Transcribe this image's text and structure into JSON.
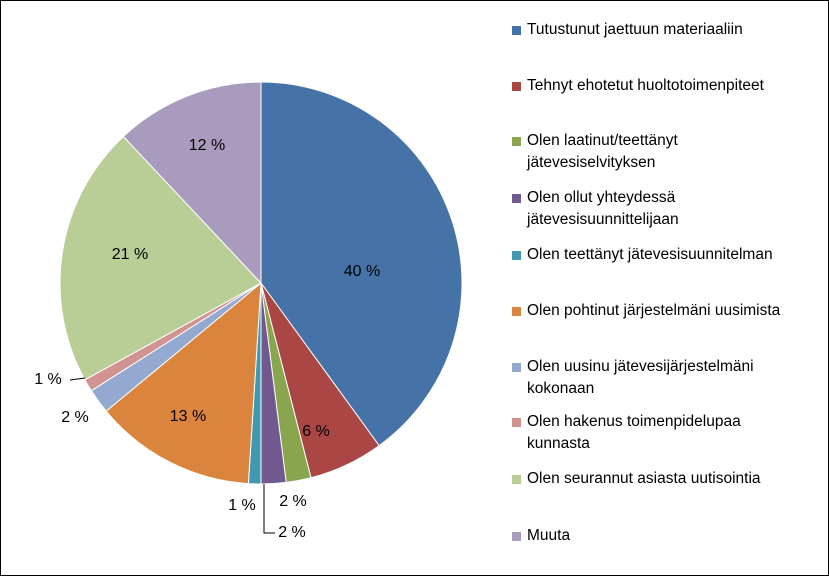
{
  "chart_data": {
    "type": "pie",
    "title": "",
    "legend_position": "right",
    "slices": [
      {
        "name": "Tutustunut jaettuun materiaaliin",
        "value": 40,
        "label": "40 %",
        "color": "#4572A7"
      },
      {
        "name": "Tehnyt ehotetut huoltotoimenpiteet",
        "value": 6,
        "label": "6 %",
        "color": "#AA4643"
      },
      {
        "name": "Olen laatinut/teettänyt\njätevesiselvityksen",
        "value": 2,
        "label": "2 %",
        "color": "#89A54E"
      },
      {
        "name": "Olen ollut yhteydessä\njätevesisuunnittelijaan",
        "value": 2,
        "label": "2 %",
        "color": "#71588F"
      },
      {
        "name": "Olen teettänyt jätevesisuunnitelman",
        "value": 1,
        "label": "1 %",
        "color": "#4198AF"
      },
      {
        "name": "Olen pohtinut järjestelmäni uusimista",
        "value": 13,
        "label": "13 %",
        "color": "#DB843D"
      },
      {
        "name": "Olen uusinu jätevesijärjestelmäni\nkokonaan",
        "value": 2,
        "label": "2 %",
        "color": "#93A9CF"
      },
      {
        "name": "Olen hakenus toimenpidelupaa\nkunnasta",
        "value": 1,
        "label": "1 %",
        "color": "#D19392"
      },
      {
        "name": "Olen seurannut asiasta uutisointia",
        "value": 21,
        "label": "21 %",
        "color": "#B9CD96"
      },
      {
        "name": "Muuta",
        "value": 12,
        "label": "12 %",
        "color": "#A99BBD"
      }
    ]
  }
}
